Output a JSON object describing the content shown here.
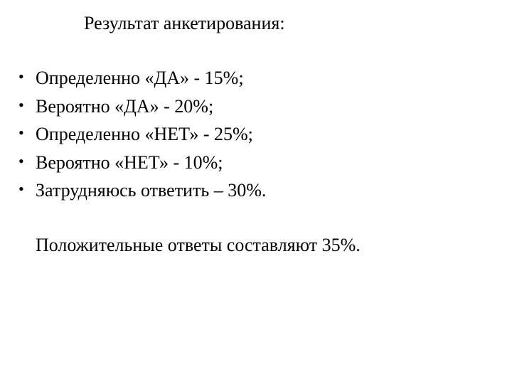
{
  "title": "Результат анкетирования:",
  "bullets": [
    "Определенно «ДА» - 15%;",
    "Вероятно «ДА» - 20%;",
    "Определенно «НЕТ» - 25%;",
    "Вероятно «НЕТ» - 10%;",
    "Затрудняюсь ответить – 30%."
  ],
  "summary": "Положительные ответы составляют 35%.",
  "styling": {
    "background_color": "#ffffff",
    "text_color": "#000000",
    "font_family": "Times New Roman",
    "title_fontsize": 26,
    "body_fontsize": 26,
    "bullet_char": "•",
    "line_height": 1.52
  }
}
